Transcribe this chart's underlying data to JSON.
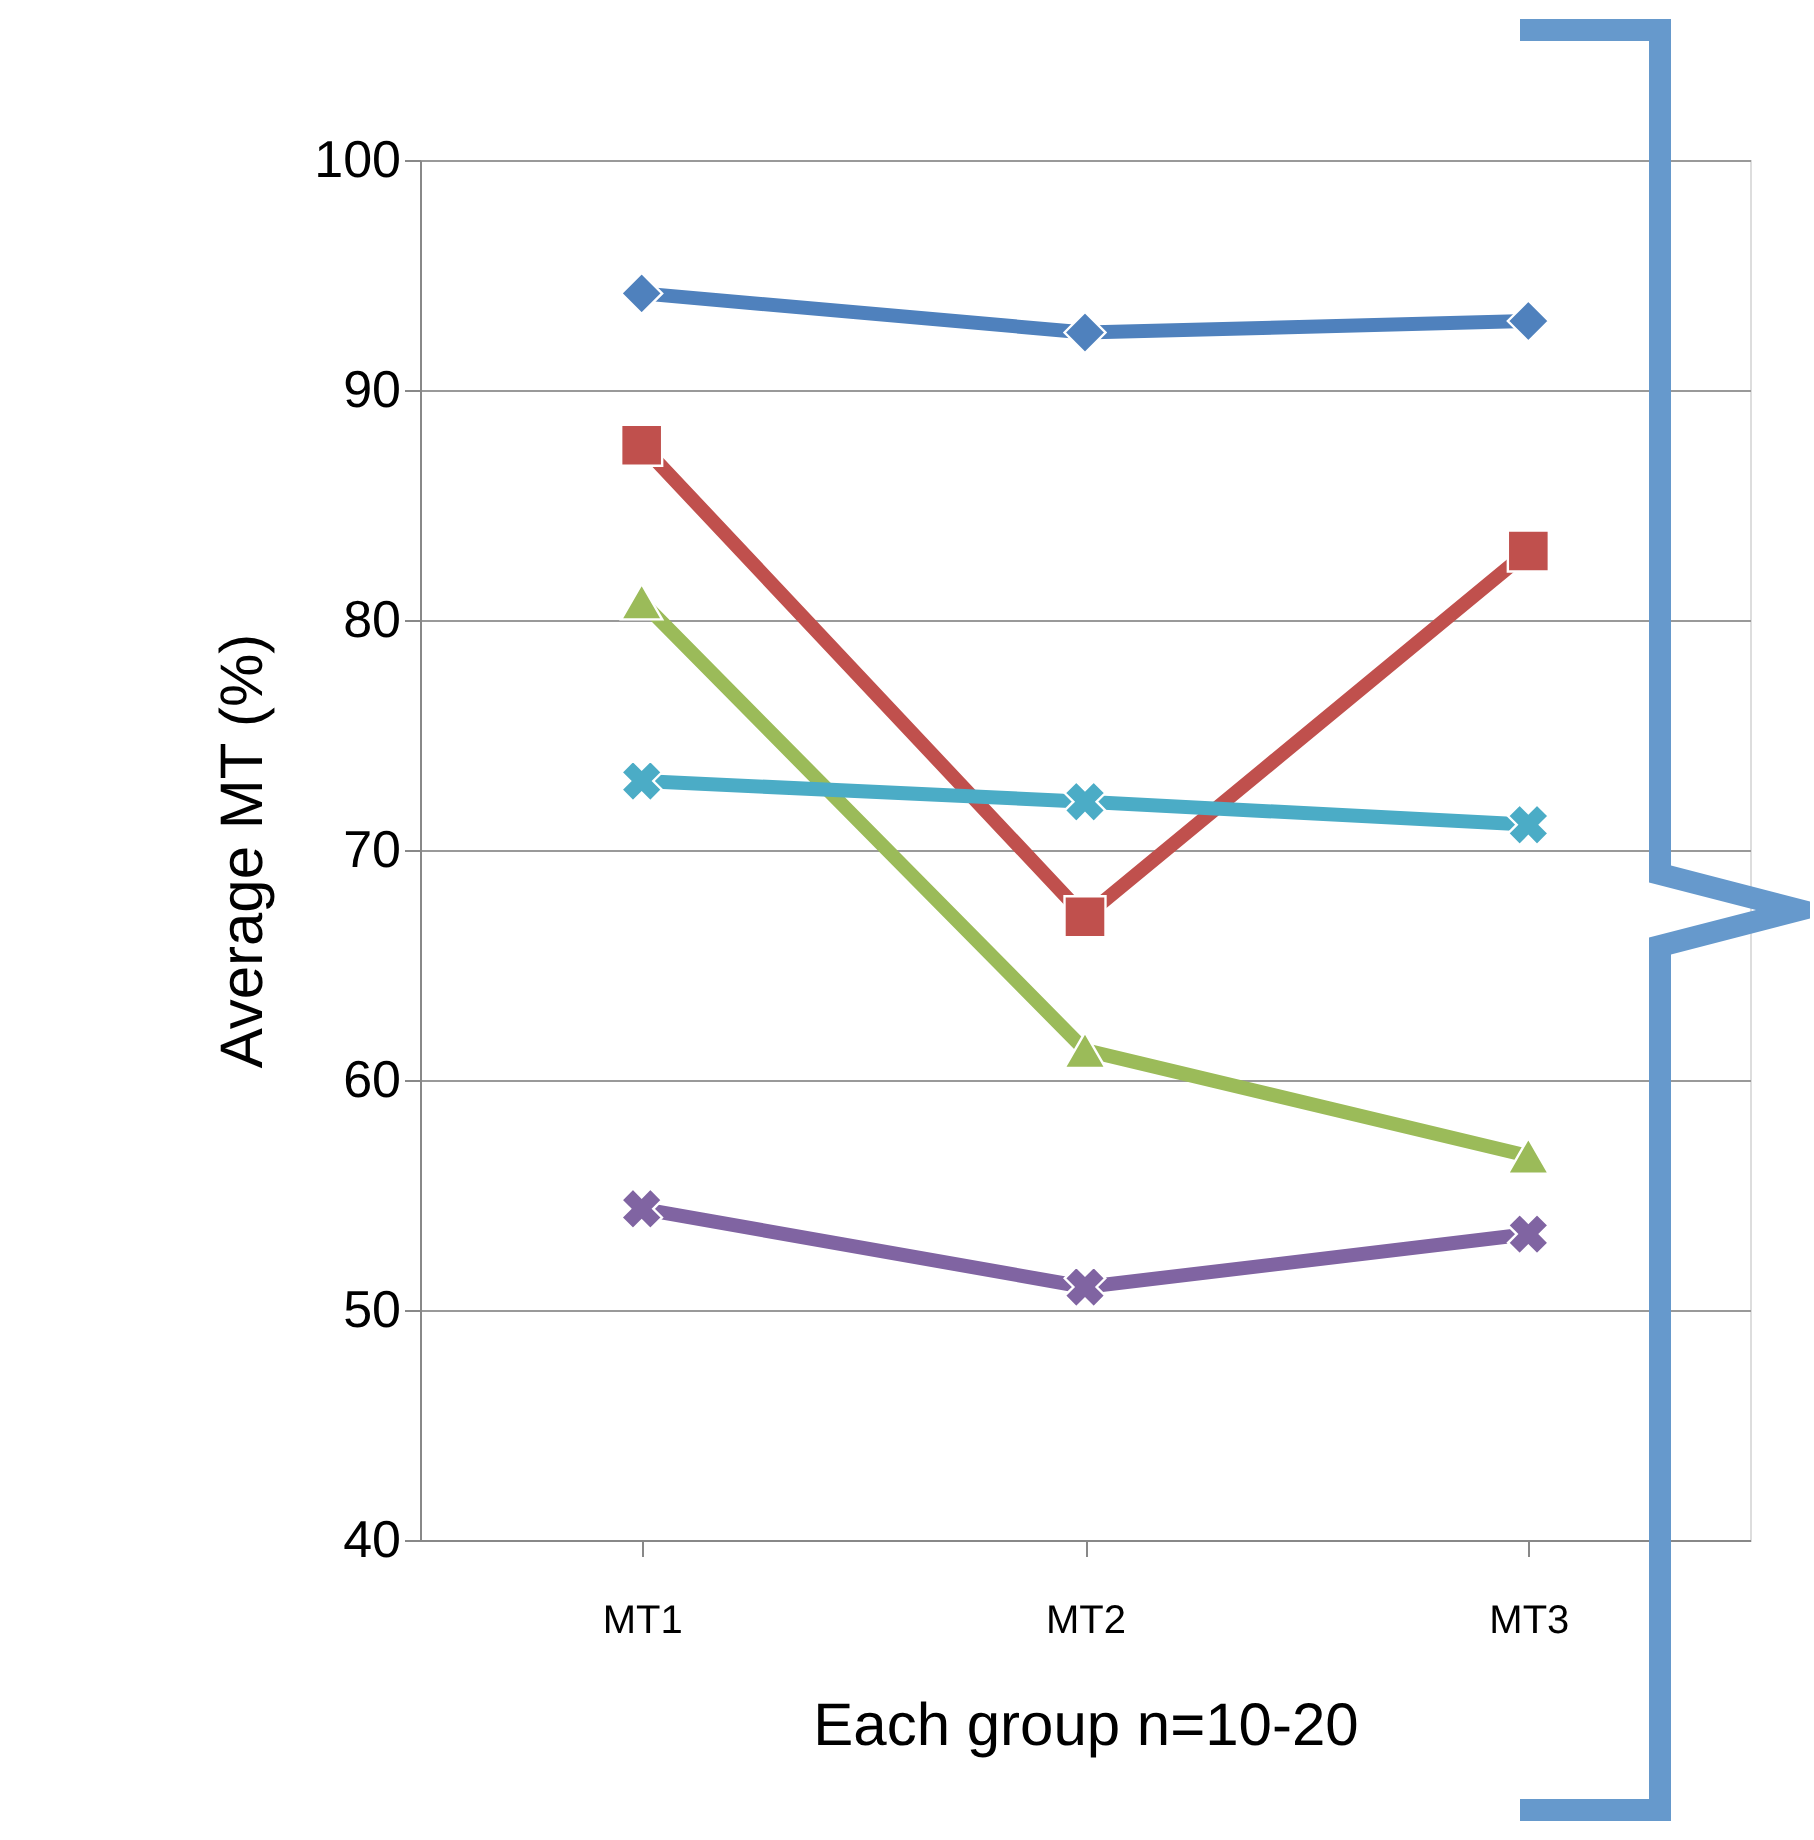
{
  "chart_data": {
    "type": "line",
    "xlabel": "Each group n=10-20",
    "ylabel": "Average MT (%)",
    "categories": [
      "MT1",
      "MT2",
      "MT3"
    ],
    "ylim": [
      40,
      100
    ],
    "yticks": [
      40,
      50,
      60,
      70,
      80,
      90,
      100
    ],
    "grid": "y",
    "line_style": "solid",
    "series": [
      {
        "color": "#4f81bd",
        "marker": "diamond",
        "values": [
          94.2,
          92.5,
          93
        ]
      },
      {
        "color": "#c0504d",
        "marker": "square",
        "values": [
          87.6,
          67.1,
          83
        ]
      },
      {
        "color": "#9bbb59",
        "marker": "triangle",
        "values": [
          80.8,
          61.3,
          56.7
        ]
      },
      {
        "color": "#4bacc6",
        "marker": "cross",
        "values": [
          73,
          72.1,
          71.1
        ]
      },
      {
        "color": "#8064a2",
        "marker": "cross",
        "values": [
          54.4,
          51,
          53.3
        ]
      }
    ]
  }
}
